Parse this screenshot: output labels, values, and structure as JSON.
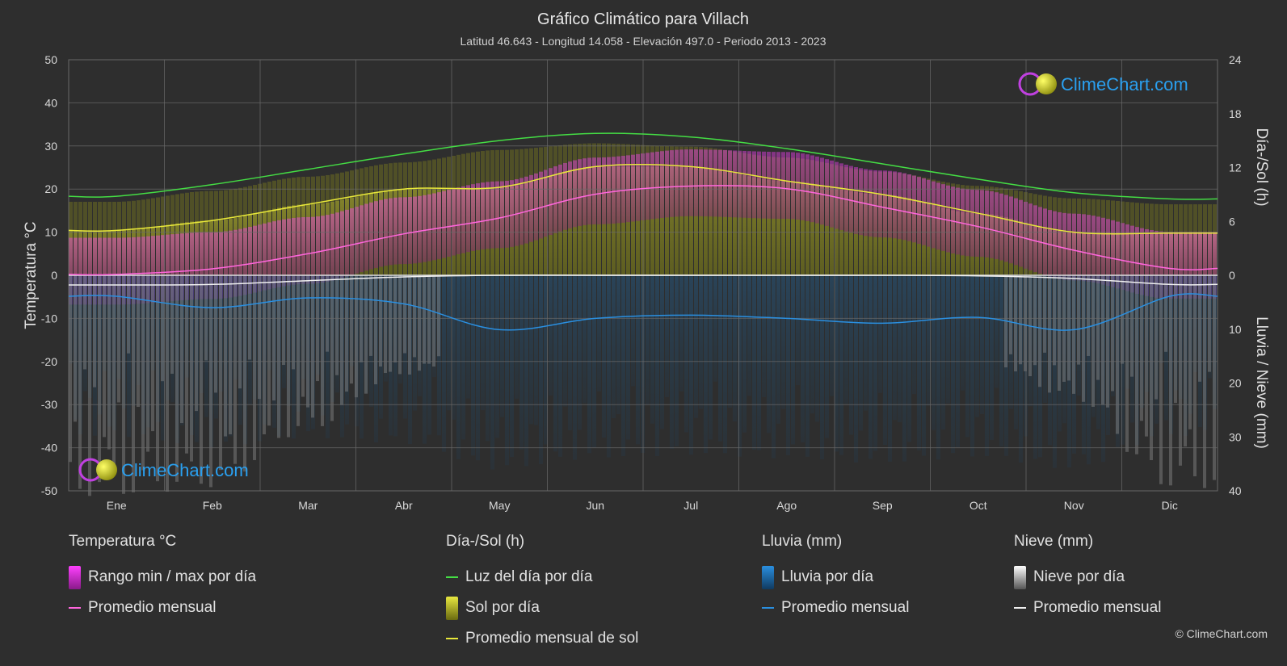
{
  "header": {
    "title": "Gráfico Climático para Villach",
    "subtitle": "Latitud 46.643 - Longitud 14.058 - Elevación 497.0 - Periodo 2013 - 2023"
  },
  "branding": {
    "logo_text": "ClimeChart.com",
    "copyright": "© ClimeChart.com"
  },
  "colors": {
    "background": "#2e2e2e",
    "daylight": "#44dd44",
    "sunshine_avg": "#e8e83a",
    "temp_avg": "#ff66dd",
    "rain_avg": "#2a8fe0",
    "snow_avg": "#f0f0f0",
    "temp_range": "#e040e0",
    "sunshine_fill": "#a8a820",
    "rain_fill": "#2070b0",
    "snow_fill": "#9a9a9a"
  },
  "chart_data": {
    "type": "area",
    "categories": [
      "Ene",
      "Feb",
      "Mar",
      "Abr",
      "May",
      "Jun",
      "Jul",
      "Ago",
      "Sep",
      "Oct",
      "Nov",
      "Dic"
    ],
    "left_axis": {
      "label": "Temperatura °C",
      "ylim": [
        -50,
        50
      ],
      "ticks": [
        "50",
        "40",
        "30",
        "20",
        "10",
        "0",
        "-10",
        "-20",
        "-30",
        "-40",
        "-50"
      ]
    },
    "right_axis_top": {
      "label": "Día-/Sol (h)",
      "ylim": [
        0,
        24
      ],
      "ticks": [
        "24",
        "18",
        "12",
        "6",
        "0"
      ]
    },
    "right_axis_bottom": {
      "label": "Lluvia / Nieve (mm)",
      "ylim": [
        0,
        40
      ],
      "ticks": [
        "0",
        "10",
        "20",
        "30",
        "40"
      ]
    },
    "grid": true,
    "series": [
      {
        "name": "Luz del día por día",
        "axis": "hours",
        "values": [
          8.8,
          10.1,
          11.8,
          13.5,
          15.0,
          15.8,
          15.4,
          14.1,
          12.4,
          10.7,
          9.2,
          8.5
        ]
      },
      {
        "name": "Promedio mensual de sol",
        "axis": "hours",
        "values": [
          5.0,
          6.1,
          7.9,
          9.6,
          9.8,
          12.1,
          12.1,
          10.5,
          9.0,
          6.9,
          4.8,
          4.7
        ]
      },
      {
        "name": "Promedio mensual",
        "group": "Temperatura °C",
        "axis": "temperature",
        "values": [
          0.2,
          1.5,
          5.0,
          9.6,
          13.3,
          18.8,
          20.7,
          20.1,
          15.8,
          11.3,
          5.8,
          1.6
        ]
      },
      {
        "name": "Promedio mensual",
        "group": "Lluvia (mm)",
        "axis": "precip",
        "values": [
          3.9,
          6.0,
          4.2,
          5.3,
          10.1,
          8.0,
          7.4,
          8.0,
          8.9,
          7.8,
          10.1,
          3.9
        ]
      },
      {
        "name": "Promedio mensual",
        "group": "Nieve (mm)",
        "axis": "precip",
        "values": [
          1.8,
          1.7,
          1.0,
          0.3,
          0.0,
          0.0,
          0.0,
          0.0,
          0.0,
          0.1,
          0.6,
          1.7
        ]
      }
    ]
  },
  "legend": {
    "groups": [
      {
        "title": "Temperatura °C",
        "items": [
          {
            "label": "Rango min / max por día",
            "swatch": "box-temp"
          },
          {
            "label": "Promedio mensual",
            "swatch": "line-temp"
          }
        ]
      },
      {
        "title": "Día-/Sol (h)",
        "items": [
          {
            "label": "Luz del día por día",
            "swatch": "line-daylight"
          },
          {
            "label": "Sol por día",
            "swatch": "box-sun"
          },
          {
            "label": "Promedio mensual de sol",
            "swatch": "line-sun"
          }
        ]
      },
      {
        "title": "Lluvia (mm)",
        "items": [
          {
            "label": "Lluvia por día",
            "swatch": "box-rain"
          },
          {
            "label": "Promedio mensual",
            "swatch": "line-rain"
          }
        ]
      },
      {
        "title": "Nieve (mm)",
        "items": [
          {
            "label": "Nieve por día",
            "swatch": "box-snow"
          },
          {
            "label": "Promedio mensual",
            "swatch": "line-snow"
          }
        ]
      }
    ]
  }
}
